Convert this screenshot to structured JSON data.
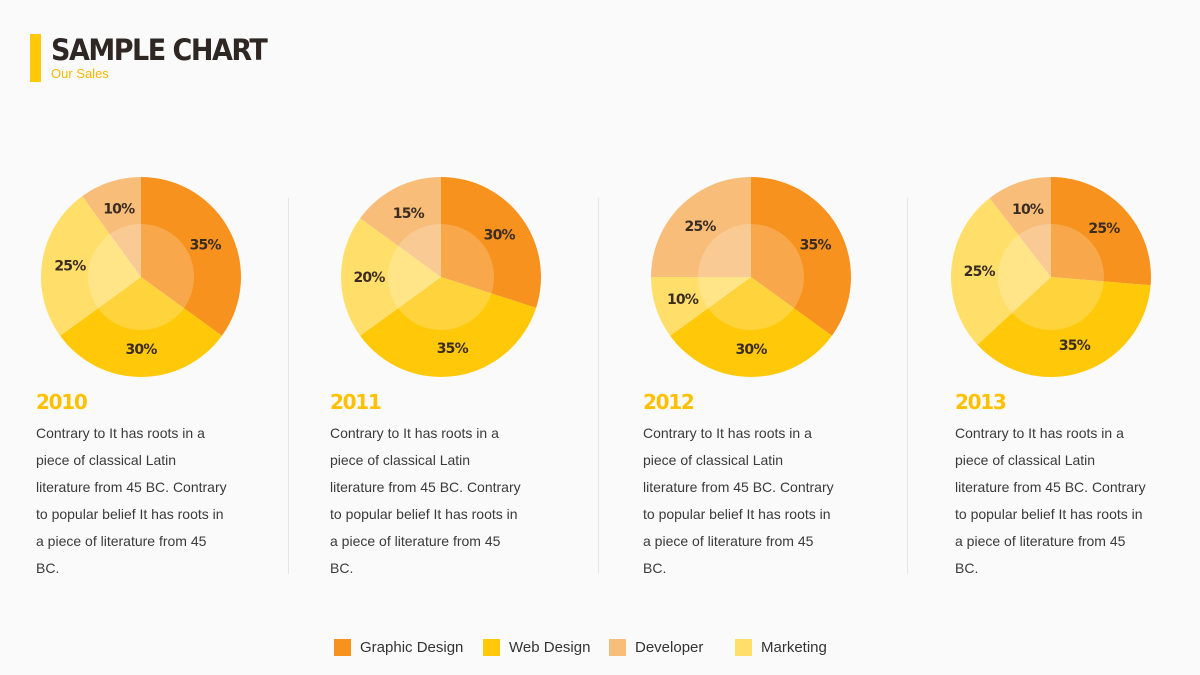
{
  "header": {
    "title": "SAMPLE CHART",
    "subtitle": "Our Sales"
  },
  "colors": {
    "graphic_design": "#f7921e",
    "web_design": "#ffc90a",
    "developer": "#f9bd7a",
    "marketing": "#ffdf6a"
  },
  "chart_data": {
    "type": "pie",
    "title": "SAMPLE CHART",
    "subtitle": "Our Sales",
    "legend": {
      "position": "bottom",
      "entries": [
        "Graphic Design",
        "Web Design",
        "Developer",
        "Marketing"
      ]
    },
    "pies": [
      {
        "year": "2010",
        "slices": [
          {
            "name": "Graphic Design",
            "value": 35,
            "label": "35%"
          },
          {
            "name": "Web Design",
            "value": 30,
            "label": "30%"
          },
          {
            "name": "Marketing",
            "value": 25,
            "label": "25%"
          },
          {
            "name": "Developer",
            "value": 10,
            "label": "10%"
          }
        ],
        "description": [
          "Contrary to It has roots in a",
          "piece of classical Latin",
          "literature from 45 BC. Contrary",
          "to popular belief It has roots in",
          "a piece of literature from 45",
          "BC."
        ]
      },
      {
        "year": "2011",
        "slices": [
          {
            "name": "Graphic Design",
            "value": 30,
            "label": "30%"
          },
          {
            "name": "Web Design",
            "value": 35,
            "label": "35%"
          },
          {
            "name": "Marketing",
            "value": 20,
            "label": "20%"
          },
          {
            "name": "Developer",
            "value": 15,
            "label": "15%"
          }
        ],
        "description": [
          "Contrary to It has roots in a",
          "piece of classical Latin",
          "literature from 45 BC. Contrary",
          "to popular belief It has roots in",
          "a piece of literature from 45",
          "BC."
        ]
      },
      {
        "year": "2012",
        "slices": [
          {
            "name": "Graphic Design",
            "value": 35,
            "label": "35%"
          },
          {
            "name": "Web Design",
            "value": 30,
            "label": "30%"
          },
          {
            "name": "Marketing",
            "value": 10,
            "label": "10%"
          },
          {
            "name": "Developer",
            "value": 25,
            "label": "25%"
          }
        ],
        "description": [
          "Contrary to It has roots in a",
          "piece of classical Latin",
          "literature from 45 BC. Contrary",
          "to popular belief It has roots in",
          "a piece of literature from 45",
          "BC."
        ]
      },
      {
        "year": "2013",
        "slices": [
          {
            "name": "Graphic Design",
            "value": 25,
            "label": "25%"
          },
          {
            "name": "Web Design",
            "value": 35,
            "label": "35%"
          },
          {
            "name": "Marketing",
            "value": 25,
            "label": "25%"
          },
          {
            "name": "Developer",
            "value": 10,
            "label": "10%"
          }
        ],
        "description": [
          "Contrary to It has roots in a",
          "piece of classical Latin",
          "literature from 45 BC. Contrary",
          "to popular belief It has roots in",
          "a piece of literature from 45",
          "BC."
        ]
      }
    ]
  }
}
